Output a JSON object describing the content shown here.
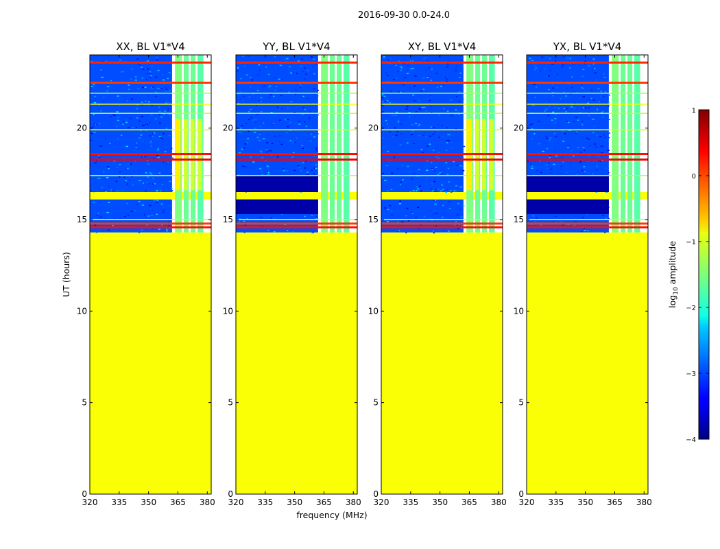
{
  "chart_data": {
    "type": "heatmap",
    "suptitle": "2016-09-30 0.0-24.0",
    "xlabel": "frequency (MHz)",
    "ylabel": "UT (hours)",
    "xlim": [
      320,
      382
    ],
    "ylim": [
      0,
      24
    ],
    "xticks": [
      320,
      335,
      350,
      365,
      380
    ],
    "yticks": [
      0,
      5,
      10,
      15,
      20
    ],
    "colorbar": {
      "label": "log10 amplitude",
      "label_base": "log",
      "label_sub": "10",
      "label_rest": " amplitude",
      "colormap": "jet",
      "range": [
        -4,
        1
      ],
      "ticks": [
        -4,
        -3,
        -2,
        -1,
        0,
        1
      ],
      "tick_labels": [
        "−4",
        "−3",
        "−2",
        "−1",
        "0",
        "1"
      ]
    },
    "panels": [
      {
        "title": "XX, BL V1*V4",
        "polarization": "XX",
        "baseline": "V1*V4"
      },
      {
        "title": "YY, BL V1*V4",
        "polarization": "YY",
        "baseline": "V1*V4"
      },
      {
        "title": "XY, BL V1*V4",
        "polarization": "XY",
        "baseline": "V1*V4"
      },
      {
        "title": "YX, BL V1*V4",
        "polarization": "YX",
        "baseline": "V1*V4"
      }
    ],
    "regions": [
      {
        "ut_range": [
          0,
          14.3
        ],
        "freq_range": [
          320,
          382
        ],
        "log10_amplitude": -0.9,
        "note": "flagged/filled"
      },
      {
        "ut_range": [
          14.3,
          24
        ],
        "freq_range": [
          320,
          362
        ],
        "log10_amplitude": -3.0,
        "note": "background"
      },
      {
        "ut_range": [
          16.1,
          16.5
        ],
        "freq_range": [
          320,
          382
        ],
        "log10_amplitude": -0.9,
        "note": "flagged band"
      }
    ],
    "bright_channels": [
      {
        "freq_range": [
          363.5,
          367
        ],
        "log10_amplitude": -1.5
      },
      {
        "freq_range": [
          368,
          370.5
        ],
        "log10_amplitude": -1.6
      },
      {
        "freq_range": [
          371.5,
          374
        ],
        "log10_amplitude": -1.6
      },
      {
        "freq_range": [
          375,
          378
        ],
        "log10_amplitude": -1.7
      }
    ],
    "horizontal_lines_ut": [
      {
        "ut": 23.6,
        "log10_amplitude": 0.2
      },
      {
        "ut": 22.5,
        "log10_amplitude": 0.1
      },
      {
        "ut": 21.9,
        "log10_amplitude": -1.3
      },
      {
        "ut": 21.3,
        "log10_amplitude": -0.9
      },
      {
        "ut": 20.8,
        "log10_amplitude": -1.2
      },
      {
        "ut": 19.9,
        "log10_amplitude": -1.0
      },
      {
        "ut": 18.6,
        "log10_amplitude": 0.3
      },
      {
        "ut": 18.3,
        "log10_amplitude": 0.4
      },
      {
        "ut": 17.4,
        "log10_amplitude": -1.2
      },
      {
        "ut": 15.0,
        "log10_amplitude": -1.1
      },
      {
        "ut": 14.8,
        "log10_amplitude": 0.1
      },
      {
        "ut": 14.6,
        "log10_amplitude": 0.3
      }
    ]
  }
}
